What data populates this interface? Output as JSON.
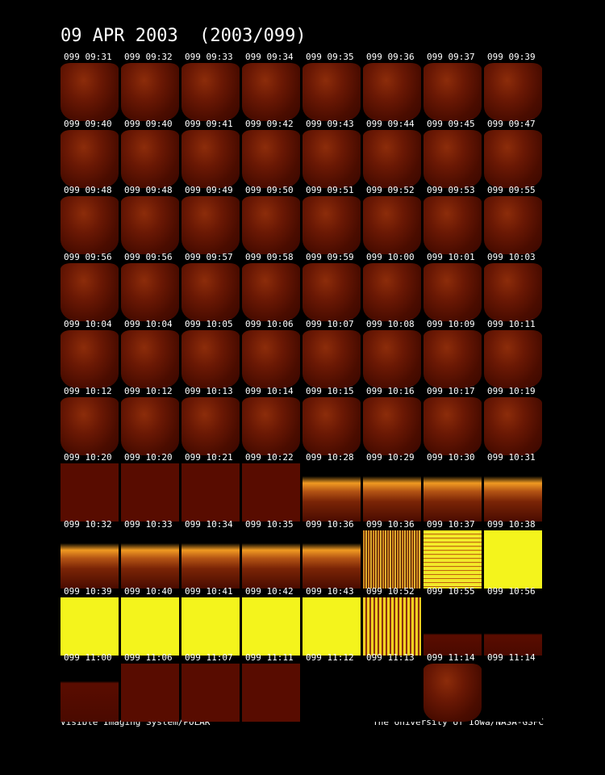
{
  "header": {
    "title": "09 APR 2003  (2003/099)"
  },
  "rows": [
    [
      "099 09:31",
      "099 09:32",
      "099 09:33",
      "099 09:34",
      "099 09:35",
      "099 09:36",
      "099 09:37",
      "099 09:39"
    ],
    [
      "099 09:40",
      "099 09:40",
      "099 09:41",
      "099 09:42",
      "099 09:43",
      "099 09:44",
      "099 09:45",
      "099 09:47"
    ],
    [
      "099 09:48",
      "099 09:48",
      "099 09:49",
      "099 09:50",
      "099 09:51",
      "099 09:52",
      "099 09:53",
      "099 09:55"
    ],
    [
      "099 09:56",
      "099 09:56",
      "099 09:57",
      "099 09:58",
      "099 09:59",
      "099 10:00",
      "099 10:01",
      "099 10:03"
    ],
    [
      "099 10:04",
      "099 10:04",
      "099 10:05",
      "099 10:06",
      "099 10:07",
      "099 10:08",
      "099 10:09",
      "099 10:11"
    ],
    [
      "099 10:12",
      "099 10:12",
      "099 10:13",
      "099 10:14",
      "099 10:15",
      "099 10:16",
      "099 10:17",
      "099 10:19"
    ],
    [
      "099 10:20",
      "099 10:20",
      "099 10:21",
      "099 10:22",
      "099 10:28",
      "099 10:29",
      "099 10:30",
      "099 10:31"
    ],
    [
      "099 10:32",
      "099 10:33",
      "099 10:34",
      "099 10:35",
      "099 10:36",
      "099 10:36",
      "099 10:37",
      "099 10:38"
    ],
    [
      "099 10:39",
      "099 10:40",
      "099 10:41",
      "099 10:42",
      "099 10:43",
      "099 10:52",
      "099 10:55",
      "099 10:56"
    ],
    [
      "099 11:00",
      "099 11:06",
      "099 11:07",
      "099 11:11",
      "099 11:12",
      "099 11:13",
      "099 11:14",
      "099 11:14"
    ]
  ],
  "footer": {
    "left": "Visible Imaging System/POLAR",
    "right": "The University of Iowa/NASA-GSFC"
  }
}
